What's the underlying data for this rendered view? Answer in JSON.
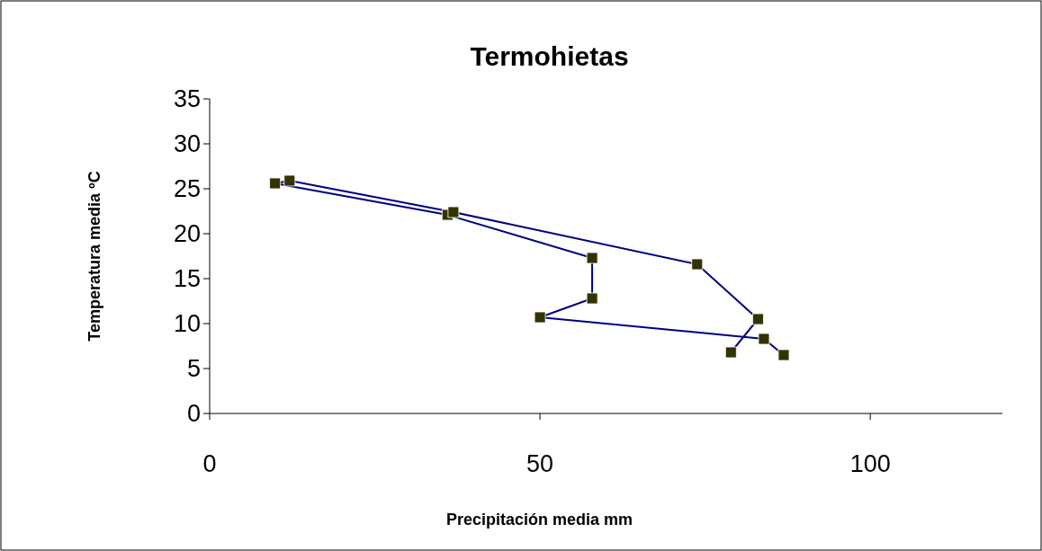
{
  "chart_data": {
    "type": "line",
    "title": "Termohietas",
    "xlabel": "Precipitación media mm",
    "ylabel": "Temperatura media ºC",
    "series": [
      {
        "color": "#000080",
        "x": [
          86.9,
          83.9,
          50.0,
          57.9,
          57.9,
          36.0,
          9.9,
          12.1,
          36.9,
          73.8,
          83.0,
          78.9
        ],
        "values": [
          6.5,
          8.3,
          10.7,
          12.8,
          17.3,
          22.1,
          25.6,
          25.9,
          22.4,
          16.6,
          10.5,
          6.8
        ]
      }
    ],
    "marker": "square",
    "line_style": "solid",
    "grid": false,
    "xlim": [
      0,
      120
    ],
    "xticks": [
      0,
      50,
      100
    ],
    "ylim": [
      0,
      35
    ],
    "yticks": [
      0,
      5,
      10,
      15,
      20,
      25,
      30,
      35
    ]
  }
}
